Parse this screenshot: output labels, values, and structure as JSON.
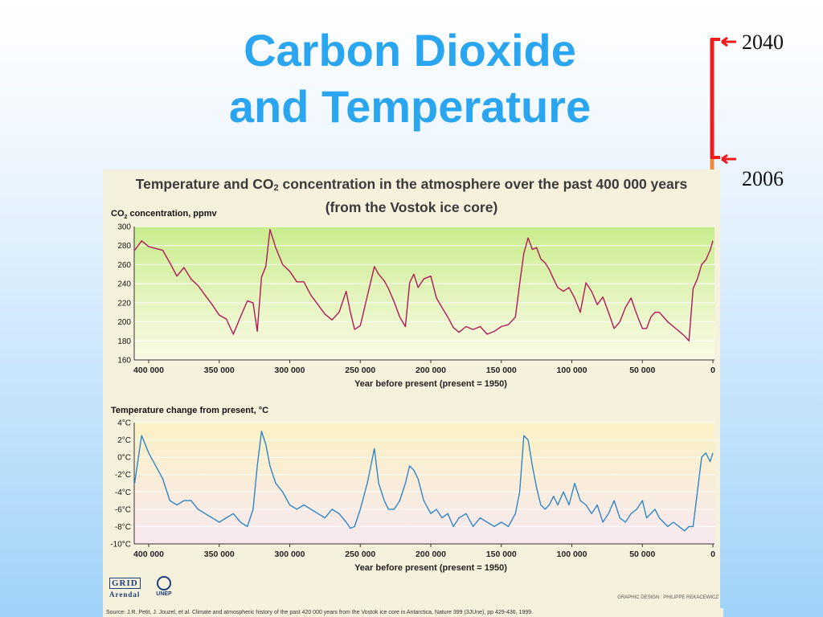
{
  "slide": {
    "title_line1": "Carbon Dioxide",
    "title_line2": "and Temperature",
    "marker_top": "2040",
    "marker_bottom": "2006",
    "colors": {
      "title": "#2aa5f0",
      "marker_red": "#ee1c1c",
      "marker_orange": "#f08a3c"
    }
  },
  "figure": {
    "title_part1": "Temperature and CO",
    "title_sub": "2",
    "title_part2": " concentration in the atmosphere over the past 400 000 years",
    "subtitle": "(from the Vostok ice core)",
    "logo_grid": "GRID",
    "logo_arendal": "Arendal",
    "logo_unep": "UNEP",
    "design_credit": "GRAPHIC DESIGN : PHILIPPE REKACEWICZ",
    "source": "Source: J.R. Petit, J. Jouzel, et al. Climate and atmospheric history of the past 420 000 years from the Vostok ice core in Antarctica, Nature 399 (3JUne), pp 429-436, 1999."
  },
  "chart_data": [
    {
      "type": "line",
      "title_part1": "CO",
      "title_sub": "2",
      "title_part2": " concentration, ppmv",
      "xlabel": "Year before present (present = 1950)",
      "xlim": [
        400000,
        0
      ],
      "ylim": [
        160,
        300
      ],
      "x_ticks": [
        400000,
        350000,
        300000,
        250000,
        200000,
        150000,
        100000,
        50000,
        0
      ],
      "x_tick_labels": [
        "400 000",
        "350 000",
        "300 000",
        "250 000",
        "200 000",
        "150 000",
        "100 000",
        "50 000",
        "0"
      ],
      "y_ticks": [
        160,
        180,
        200,
        220,
        240,
        260,
        280,
        300
      ],
      "y_tick_labels": [
        "160",
        "180",
        "200",
        "220",
        "240",
        "260",
        "280",
        "300"
      ],
      "color": "#b0185a",
      "series": [
        {
          "x": [
            410000,
            405000,
            400000,
            395000,
            390000,
            385000,
            380000,
            375000,
            370000,
            365000,
            360000,
            355000,
            350000,
            345000,
            340000,
            335000,
            330000,
            326000,
            323000,
            320000,
            317000,
            314000,
            310000,
            305000,
            300000,
            295000,
            290000,
            285000,
            280000,
            275000,
            270000,
            265000,
            260000,
            257000,
            254000,
            250000,
            245000,
            240000,
            237000,
            233000,
            230000,
            226000,
            222000,
            218000,
            215000,
            212000,
            209000,
            205000,
            200000,
            196000,
            192000,
            188000,
            184000,
            180000,
            175000,
            170000,
            165000,
            160000,
            155000,
            150000,
            145000,
            140000,
            137000,
            134000,
            131000,
            128000,
            125000,
            122000,
            119000,
            116000,
            113000,
            110000,
            106000,
            102000,
            98000,
            94000,
            90000,
            86000,
            82000,
            78000,
            74000,
            70000,
            66000,
            62000,
            58000,
            54000,
            50000,
            47000,
            44000,
            41000,
            38000,
            35000,
            32000,
            28000,
            24000,
            20000,
            17000,
            14000,
            11000,
            8000,
            5000,
            2000,
            0
          ],
          "values": [
            275,
            285,
            279,
            277,
            275,
            262,
            248,
            257,
            245,
            238,
            228,
            218,
            207,
            203,
            187,
            205,
            222,
            220,
            190,
            247,
            258,
            297,
            278,
            260,
            253,
            242,
            242,
            228,
            218,
            208,
            202,
            210,
            232,
            210,
            192,
            196,
            227,
            258,
            250,
            243,
            235,
            221,
            205,
            195,
            241,
            250,
            236,
            245,
            248,
            225,
            215,
            205,
            194,
            189,
            195,
            192,
            195,
            187,
            190,
            195,
            197,
            205,
            240,
            272,
            288,
            276,
            278,
            266,
            262,
            255,
            245,
            236,
            232,
            236,
            225,
            210,
            241,
            232,
            218,
            226,
            210,
            193,
            200,
            215,
            225,
            208,
            193,
            193,
            205,
            210,
            210,
            205,
            200,
            195,
            190,
            185,
            180,
            235,
            245,
            260,
            265,
            275,
            285
          ]
        }
      ]
    },
    {
      "type": "line",
      "title": "Temperature change from present, °C",
      "xlabel": "Year before present (present = 1950)",
      "xlim": [
        400000,
        0
      ],
      "ylim": [
        -10,
        4
      ],
      "x_ticks": [
        400000,
        350000,
        300000,
        250000,
        200000,
        150000,
        100000,
        50000,
        0
      ],
      "x_tick_labels": [
        "400 000",
        "350 000",
        "300 000",
        "250 000",
        "200 000",
        "150 000",
        "100 000",
        "50 000",
        "0"
      ],
      "y_ticks": [
        4,
        2,
        0,
        -2,
        -4,
        -6,
        -8,
        -10
      ],
      "y_tick_labels": [
        "4°C",
        "2°C",
        "0°C",
        "-2°C",
        "-4°C",
        "-6°C",
        "-8°C",
        "-10°C"
      ],
      "color": "#2f86c5",
      "series": [
        {
          "x": [
            410000,
            405000,
            400000,
            395000,
            390000,
            385000,
            380000,
            375000,
            370000,
            365000,
            360000,
            355000,
            350000,
            345000,
            340000,
            335000,
            330000,
            326000,
            323000,
            320000,
            317000,
            314000,
            310000,
            305000,
            300000,
            295000,
            290000,
            285000,
            280000,
            275000,
            270000,
            265000,
            260000,
            257000,
            254000,
            250000,
            245000,
            240000,
            237000,
            233000,
            230000,
            226000,
            222000,
            218000,
            215000,
            212000,
            209000,
            205000,
            200000,
            196000,
            192000,
            188000,
            184000,
            180000,
            175000,
            170000,
            165000,
            160000,
            155000,
            150000,
            145000,
            140000,
            137000,
            134000,
            131000,
            128000,
            125000,
            122000,
            119000,
            116000,
            113000,
            110000,
            106000,
            102000,
            98000,
            94000,
            90000,
            86000,
            82000,
            78000,
            74000,
            70000,
            66000,
            62000,
            58000,
            54000,
            50000,
            47000,
            44000,
            41000,
            38000,
            35000,
            32000,
            28000,
            24000,
            20000,
            17000,
            14000,
            11000,
            8000,
            5000,
            2000,
            0
          ],
          "values": [
            -3,
            2.5,
            0.5,
            -1,
            -2.5,
            -5,
            -5.5,
            -5,
            -5,
            -6,
            -6.5,
            -7,
            -7.5,
            -7,
            -6.5,
            -7.5,
            -8,
            -6,
            -1,
            3,
            1.5,
            -1,
            -3,
            -4,
            -5.5,
            -6,
            -5.5,
            -6,
            -6.5,
            -7,
            -6,
            -6.5,
            -7.5,
            -8.2,
            -8,
            -6,
            -3,
            1,
            -3,
            -5,
            -6,
            -6,
            -5,
            -3,
            -1,
            -1.5,
            -2.5,
            -5,
            -6.5,
            -6,
            -7,
            -6.5,
            -8,
            -7,
            -6.5,
            -8,
            -7,
            -7.5,
            -8,
            -7.5,
            -8,
            -6.5,
            -4,
            2.5,
            2,
            -1,
            -3.5,
            -5.5,
            -6,
            -5.5,
            -4.5,
            -5.5,
            -4,
            -5.5,
            -3,
            -5,
            -5.5,
            -6.5,
            -5.5,
            -7.5,
            -6.5,
            -5,
            -7,
            -7.5,
            -6.5,
            -6,
            -5,
            -7,
            -6.5,
            -6,
            -7,
            -7.5,
            -8,
            -7.5,
            -8,
            -8.5,
            -8,
            -8,
            -4,
            0,
            0.5,
            -0.5,
            0.5
          ]
        }
      ]
    }
  ]
}
